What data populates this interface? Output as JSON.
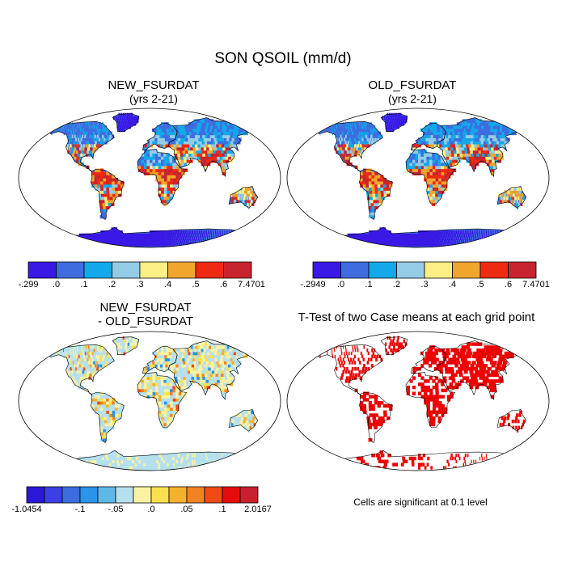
{
  "title": "SON QSOIL (mm/d)",
  "panels": {
    "new": {
      "title_line1": "NEW_FSURDAT",
      "title_line2": "(yrs 2-21)",
      "colorbar": {
        "labels": [
          "-.299",
          ".0",
          ".1",
          ".2",
          ".3",
          ".4",
          ".5",
          ".6",
          "7.4701"
        ],
        "colors": [
          "#3a18e6",
          "#3f6de0",
          "#12a8ea",
          "#94cce6",
          "#fbef86",
          "#f0a52d",
          "#ee2a12",
          "#c8242f"
        ]
      }
    },
    "old": {
      "title_line1": "OLD_FSURDAT",
      "title_line2": "(yrs 2-21)",
      "colorbar": {
        "labels": [
          "-.2949",
          ".0",
          ".1",
          ".2",
          ".3",
          ".4",
          ".5",
          ".6",
          "7.4701"
        ],
        "colors": [
          "#3a18e6",
          "#3f6de0",
          "#12a8ea",
          "#94cce6",
          "#fbef86",
          "#f0a52d",
          "#ee2a12",
          "#c8242f"
        ]
      }
    },
    "diff": {
      "title_line1": "NEW_FSURDAT",
      "title_line2": "- OLD_FSURDAT",
      "colorbar": {
        "labels": [
          "-1.0454",
          "-.1",
          "-.05",
          ".0",
          ".05",
          ".1",
          "2.0167"
        ],
        "label_slots": [
          0,
          3,
          5,
          7,
          9,
          11,
          13
        ],
        "colors": [
          "#2a17d8",
          "#3c3fe3",
          "#3b6ddf",
          "#2b93e8",
          "#5fb9e6",
          "#b6e0ee",
          "#fbf2a4",
          "#fde04e",
          "#f7b02b",
          "#f18322",
          "#f04a17",
          "#e60c0d",
          "#c91f30"
        ]
      }
    },
    "ttest": {
      "title": "T-Test of two Case means at each grid point",
      "footnote": "Cells are significant at 0.1 level",
      "significant_color": "#ee0000"
    }
  }
}
